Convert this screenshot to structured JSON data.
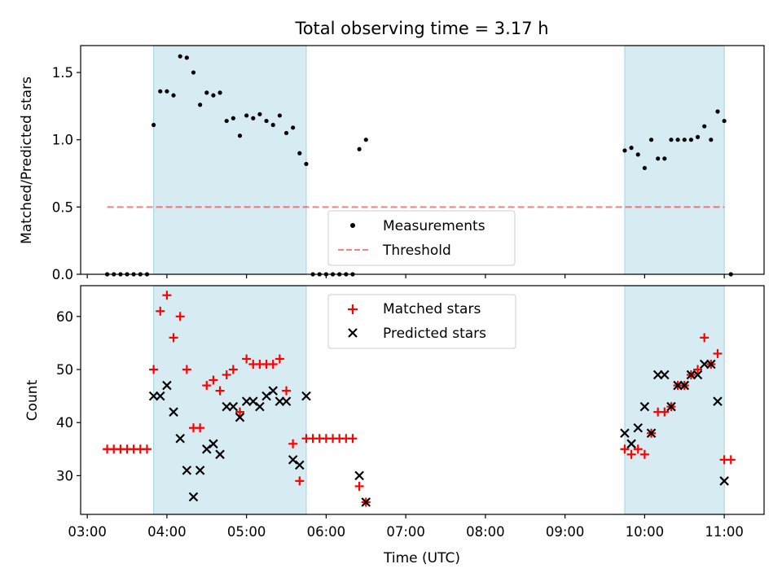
{
  "colors": {
    "shade": "#add8e6",
    "measurement": "#000000",
    "threshold": "#ff0000",
    "matched": "#ff0000",
    "predicted": "#000000"
  },
  "chart_data": [
    {
      "type": "scatter",
      "title": "Total observing time = 3.17 h",
      "xlabel": "",
      "ylabel": "Matched/Predicted stars",
      "xlim": [
        "02:55",
        "11:30"
      ],
      "ylim": [
        0,
        1.7
      ],
      "yticks": [
        0.0,
        0.5,
        1.0,
        1.5
      ],
      "ytick_labels": [
        "0.0",
        "0.5",
        "1.0",
        "1.5"
      ],
      "shaded_intervals": [
        [
          "03:50",
          "05:45"
        ],
        [
          "09:45",
          "11:00"
        ]
      ],
      "legend": {
        "placement": "lower-center",
        "entries": [
          "Measurements",
          "Threshold"
        ]
      },
      "threshold": {
        "name": "Threshold",
        "y": 0.5,
        "x_range": [
          "03:15",
          "11:00"
        ]
      },
      "series": [
        {
          "name": "Measurements",
          "x": [
            "03:15",
            "03:20",
            "03:25",
            "03:30",
            "03:35",
            "03:40",
            "03:45",
            "03:50",
            "03:55",
            "04:00",
            "04:05",
            "04:10",
            "04:15",
            "04:20",
            "04:25",
            "04:30",
            "04:35",
            "04:40",
            "04:45",
            "04:50",
            "04:55",
            "05:00",
            "05:05",
            "05:10",
            "05:15",
            "05:20",
            "05:25",
            "05:30",
            "05:35",
            "05:40",
            "05:45",
            "05:50",
            "05:55",
            "06:00",
            "06:05",
            "06:10",
            "06:15",
            "06:20",
            "06:25",
            "06:30",
            "09:45",
            "09:50",
            "09:55",
            "10:00",
            "10:05",
            "10:10",
            "10:15",
            "10:20",
            "10:25",
            "10:30",
            "10:35",
            "10:40",
            "10:45",
            "10:50",
            "10:55",
            "11:00",
            "11:05"
          ],
          "y": [
            0,
            0,
            0,
            0,
            0,
            0,
            0,
            1.11,
            1.36,
            1.36,
            1.33,
            1.62,
            1.61,
            1.5,
            1.26,
            1.35,
            1.33,
            1.35,
            1.14,
            1.16,
            1.03,
            1.18,
            1.16,
            1.19,
            1.14,
            1.11,
            1.18,
            1.05,
            1.09,
            0.9,
            0.82,
            0,
            0,
            0,
            0,
            0,
            0,
            0,
            0.93,
            1.0,
            0.92,
            0.94,
            0.89,
            0.79,
            1.0,
            0.86,
            0.86,
            1.0,
            1.0,
            1.0,
            1.0,
            1.02,
            1.1,
            1.0,
            1.21,
            1.14,
            0
          ]
        }
      ]
    },
    {
      "type": "scatter",
      "title": "",
      "xlabel": "Time (UTC)",
      "ylabel": "Count",
      "xlim": [
        "02:55",
        "11:30"
      ],
      "ylim": [
        22.7,
        65.8
      ],
      "yticks": [
        30,
        40,
        50,
        60
      ],
      "ytick_labels": [
        "30",
        "40",
        "50",
        "60"
      ],
      "xticks": [
        "03:00",
        "04:00",
        "05:00",
        "06:00",
        "07:00",
        "08:00",
        "09:00",
        "10:00",
        "11:00"
      ],
      "shaded_intervals": [
        [
          "03:50",
          "05:45"
        ],
        [
          "09:45",
          "11:00"
        ]
      ],
      "legend": {
        "placement": "upper-center",
        "entries": [
          "Matched stars",
          "Predicted stars"
        ]
      },
      "series": [
        {
          "name": "Matched stars",
          "marker": "+",
          "x": [
            "03:15",
            "03:20",
            "03:25",
            "03:30",
            "03:35",
            "03:40",
            "03:45",
            "03:50",
            "03:55",
            "04:00",
            "04:05",
            "04:10",
            "04:15",
            "04:20",
            "04:25",
            "04:30",
            "04:35",
            "04:40",
            "04:45",
            "04:50",
            "04:55",
            "05:00",
            "05:05",
            "05:10",
            "05:15",
            "05:20",
            "05:25",
            "05:30",
            "05:35",
            "05:40",
            "05:45",
            "05:50",
            "05:55",
            "06:00",
            "06:05",
            "06:10",
            "06:15",
            "06:20",
            "06:25",
            "06:30",
            "09:45",
            "09:50",
            "09:55",
            "10:00",
            "10:05",
            "10:10",
            "10:15",
            "10:20",
            "10:25",
            "10:30",
            "10:35",
            "10:40",
            "10:45",
            "10:50",
            "10:55",
            "11:00",
            "11:05"
          ],
          "y": [
            35,
            35,
            35,
            35,
            35,
            35,
            35,
            50,
            61,
            64,
            56,
            60,
            50,
            39,
            39,
            47,
            48,
            46,
            49,
            50,
            42,
            52,
            51,
            51,
            51,
            51,
            52,
            46,
            36,
            29,
            37,
            37,
            37,
            37,
            37,
            37,
            37,
            37,
            28,
            25,
            35,
            34,
            35,
            34,
            38,
            42,
            42,
            43,
            47,
            47,
            49,
            50,
            56,
            51,
            53,
            33,
            33
          ]
        },
        {
          "name": "Predicted stars",
          "marker": "x",
          "x": [
            "03:50",
            "03:55",
            "04:00",
            "04:05",
            "04:10",
            "04:15",
            "04:20",
            "04:25",
            "04:30",
            "04:35",
            "04:40",
            "04:45",
            "04:50",
            "04:55",
            "05:00",
            "05:05",
            "05:10",
            "05:15",
            "05:20",
            "05:25",
            "05:30",
            "05:35",
            "05:40",
            "05:45",
            "06:25",
            "06:30",
            "09:45",
            "09:50",
            "09:55",
            "10:00",
            "10:05",
            "10:10",
            "10:15",
            "10:20",
            "10:25",
            "10:30",
            "10:35",
            "10:40",
            "10:45",
            "10:50",
            "10:55",
            "11:00"
          ],
          "y": [
            45,
            45,
            47,
            42,
            37,
            31,
            26,
            31,
            35,
            36,
            34,
            43,
            43,
            41,
            44,
            44,
            43,
            45,
            46,
            44,
            44,
            33,
            32,
            45,
            30,
            25,
            38,
            36,
            39,
            43,
            38,
            49,
            49,
            43,
            47,
            47,
            49,
            49,
            51,
            51,
            44,
            29
          ]
        }
      ]
    }
  ]
}
